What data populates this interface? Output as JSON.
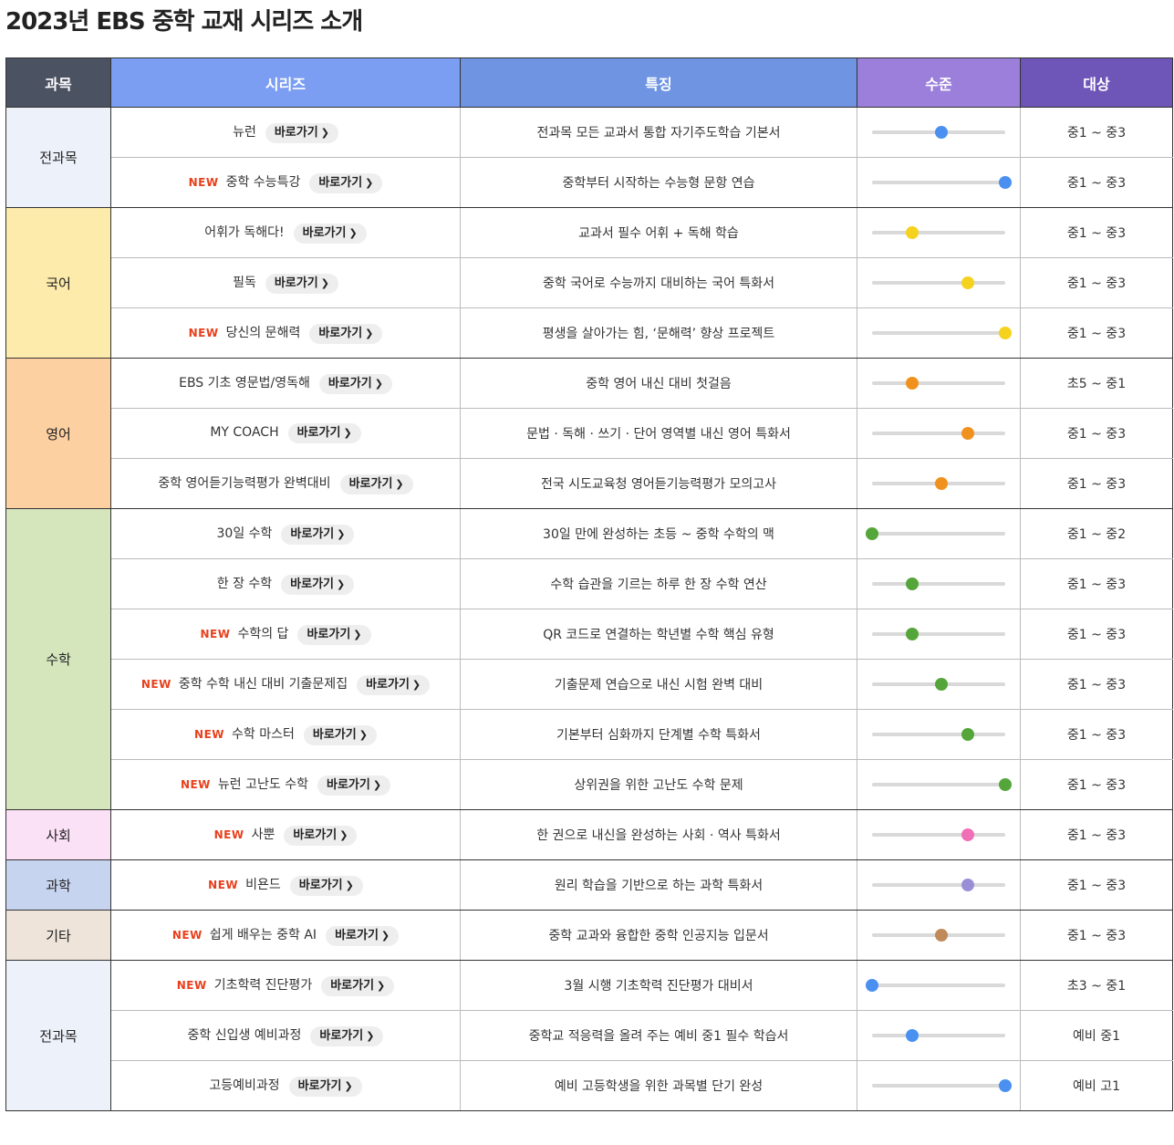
{
  "title": "2023년 EBS 중학 교재 시리즈 소개",
  "headers": {
    "subject": "과목",
    "series": "시리즈",
    "feature": "특징",
    "level": "수준",
    "target": "대상"
  },
  "colors": {
    "header_subject": "#4b5261",
    "header_series": "#7b9ef2",
    "header_feature": "#6e94e2",
    "header_level": "#9b7fdb",
    "header_target": "#6e55b8",
    "new_label": "#e8401c"
  },
  "new_label": "NEW",
  "go_label": "바로가기",
  "groups": [
    {
      "subject": "전과목",
      "bg": "#edf1fa",
      "dot": "#4a90f0",
      "rows": [
        {
          "name": "뉴런",
          "new": false,
          "feature": "전과목 모든 교과서 통합 자기주도학습 기본서",
          "level": 0.52,
          "target": "중1 ~ 중3"
        },
        {
          "name": "중학 수능특강",
          "new": true,
          "feature": "중학부터 시작하는 수능형 문항 연습",
          "level": 1.0,
          "target": "중1 ~ 중3"
        }
      ]
    },
    {
      "subject": "국어",
      "bg": "#fcebaa",
      "dot": "#f5d21e",
      "rows": [
        {
          "name": "어휘가 독해다!",
          "new": false,
          "feature": "교과서 필수 어휘 + 독해 학습",
          "level": 0.3,
          "target": "중1 ~ 중3"
        },
        {
          "name": "필독",
          "new": false,
          "feature": "중학 국어로 수능까지 대비하는 국어 특화서",
          "level": 0.72,
          "target": "중1 ~ 중3"
        },
        {
          "name": "당신의 문해력",
          "new": true,
          "feature": "평생을 살아가는 힘, ‘문해력’ 향상 프로젝트",
          "level": 1.0,
          "target": "중1 ~ 중3"
        }
      ]
    },
    {
      "subject": "영어",
      "bg": "#fdd0a2",
      "dot": "#f0911e",
      "rows": [
        {
          "name": "EBS 기초 영문법/영독해",
          "new": false,
          "feature": "중학 영어 내신 대비 첫걸음",
          "level": 0.3,
          "target": "초5 ~ 중1"
        },
        {
          "name": "MY COACH",
          "new": false,
          "feature": "문법 · 독해 · 쓰기 · 단어 영역별 내신 영어 특화서",
          "level": 0.72,
          "target": "중1 ~ 중3"
        },
        {
          "name": "중학 영어듣기능력평가 완벽대비",
          "new": false,
          "feature": "전국 시도교육청 영어듣기능력평가 모의고사",
          "level": 0.52,
          "target": "중1 ~ 중3"
        }
      ]
    },
    {
      "subject": "수학",
      "bg": "#d5e6bd",
      "dot": "#54a63a",
      "rows": [
        {
          "name": "30일 수학",
          "new": false,
          "feature": "30일 만에 완성하는 초등 ~ 중학 수학의 맥",
          "level": 0.0,
          "target": "중1 ~ 중2"
        },
        {
          "name": "한 장 수학",
          "new": false,
          "feature": "수학 습관을 기르는 하루 한 장 수학 연산",
          "level": 0.3,
          "target": "중1 ~ 중3"
        },
        {
          "name": "수학의 답",
          "new": true,
          "feature": "QR 코드로 연결하는 학년별 수학 핵심 유형",
          "level": 0.3,
          "target": "중1 ~ 중3"
        },
        {
          "name": "중학 수학 내신 대비 기출문제집",
          "new": true,
          "feature": "기출문제 연습으로 내신 시험 완벽 대비",
          "level": 0.52,
          "target": "중1 ~ 중3"
        },
        {
          "name": "수학 마스터",
          "new": true,
          "feature": "기본부터 심화까지 단계별 수학 특화서",
          "level": 0.72,
          "target": "중1 ~ 중3"
        },
        {
          "name": "뉴런 고난도 수학",
          "new": true,
          "feature": "상위권을 위한 고난도 수학 문제",
          "level": 1.0,
          "target": "중1 ~ 중3"
        }
      ]
    },
    {
      "subject": "사회",
      "bg": "#fbe1f6",
      "dot": "#f06fb6",
      "rows": [
        {
          "name": "사뿐",
          "new": true,
          "feature": "한 권으로 내신을 완성하는 사회 · 역사 특화서",
          "level": 0.72,
          "target": "중1 ~ 중3"
        }
      ]
    },
    {
      "subject": "과학",
      "bg": "#c7d4ef",
      "dot": "#9a8ed6",
      "rows": [
        {
          "name": "비욘드",
          "new": true,
          "feature": "원리 학습을 기반으로 하는 과학 특화서",
          "level": 0.72,
          "target": "중1 ~ 중3"
        }
      ]
    },
    {
      "subject": "기타",
      "bg": "#eee4da",
      "dot": "#c08a5a",
      "rows": [
        {
          "name": "쉽게 배우는 중학 AI",
          "new": true,
          "feature": "중학 교과와 융합한 중학 인공지능 입문서",
          "level": 0.52,
          "target": "중1 ~ 중3"
        }
      ]
    },
    {
      "subject": "전과목",
      "bg": "#edf1fa",
      "dot": "#4a90f0",
      "rows": [
        {
          "name": "기초학력 진단평가",
          "new": true,
          "feature": "3월 시행 기초학력 진단평가 대비서",
          "level": 0.0,
          "target": "초3 ~ 중1"
        },
        {
          "name": "중학 신입생 예비과정",
          "new": false,
          "feature": "중학교 적응력을 올려 주는 예비 중1 필수 학습서",
          "level": 0.3,
          "target": "예비 중1"
        },
        {
          "name": "고등예비과정",
          "new": false,
          "feature": "예비 고등학생을 위한 과목별 단기 완성",
          "level": 1.0,
          "target": "예비 고1"
        }
      ]
    }
  ]
}
